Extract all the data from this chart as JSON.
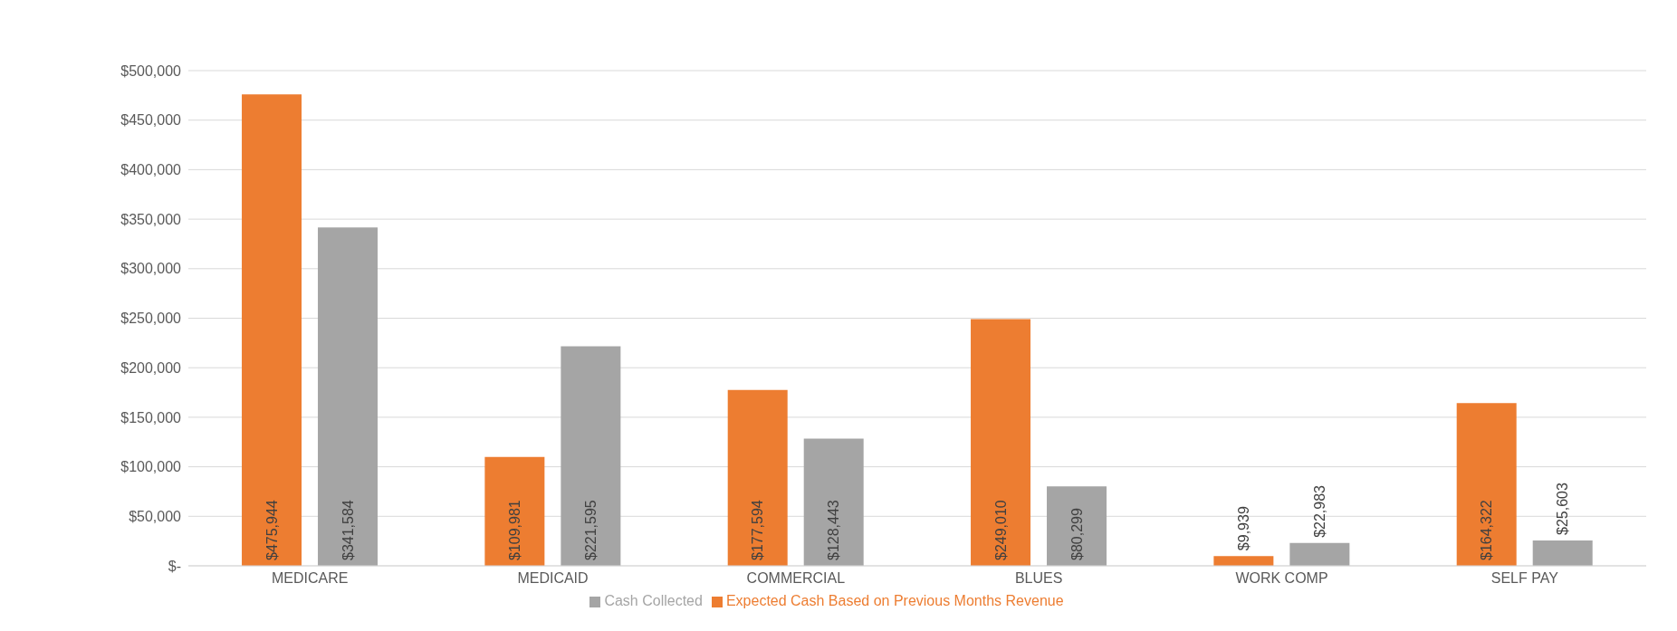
{
  "chart_data": {
    "type": "bar",
    "categories": [
      "MEDICARE",
      "MEDICAID",
      "COMMERCIAL",
      "BLUES",
      "WORK COMP",
      "SELF PAY"
    ],
    "series": [
      {
        "name": "Expected Cash Based on Previous Months Revenue",
        "color": "#ed7d31",
        "values": [
          475944,
          109981,
          177594,
          249010,
          9939,
          164322
        ],
        "value_labels": [
          "$475,944",
          "$109,981",
          "$177,594",
          "$249,010",
          "$9,939",
          "$164,322"
        ]
      },
      {
        "name": "Cash Collected",
        "color": "#a5a5a5",
        "values": [
          341584,
          221595,
          128443,
          80299,
          22983,
          25603
        ],
        "value_labels": [
          "$341,584",
          "$221,595",
          "$128,443",
          "$80,299",
          "$22,983",
          "$25,603"
        ]
      }
    ],
    "ylim": [
      0,
      500000
    ],
    "yticks": [
      {
        "value": 0,
        "label": "$-"
      },
      {
        "value": 50000,
        "label": "$50,000"
      },
      {
        "value": 100000,
        "label": "$100,000"
      },
      {
        "value": 150000,
        "label": "$150,000"
      },
      {
        "value": 200000,
        "label": "$200,000"
      },
      {
        "value": 250000,
        "label": "$250,000"
      },
      {
        "value": 300000,
        "label": "$300,000"
      },
      {
        "value": 350000,
        "label": "$350,000"
      },
      {
        "value": 400000,
        "label": "$400,000"
      },
      {
        "value": 450000,
        "label": "$450,000"
      },
      {
        "value": 500000,
        "label": "$500,000"
      }
    ],
    "grid": "y",
    "legend": "bottom"
  }
}
